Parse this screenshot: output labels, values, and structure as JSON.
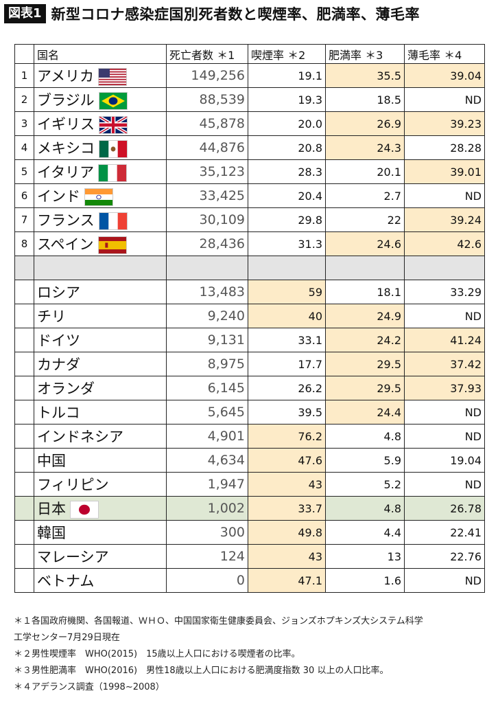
{
  "header": {
    "badge": "図表1",
    "title": "新型コロナ感染症国別死者数と喫煙率、肥満率、薄毛率"
  },
  "columns": [
    "",
    "国名",
    "死亡者数 ＊1",
    "喫煙率 ＊2",
    "肥満率 ＊3",
    "薄毛率 ＊4"
  ],
  "colors": {
    "highlight": "#fdebc8",
    "japan_row": "#dfe8d4",
    "separator": "#e4e4e4"
  },
  "rows": [
    {
      "rank": "1",
      "name": "アメリカ",
      "flag": "us-flag-icon",
      "deaths": "149,256",
      "smoking": "19.1",
      "obesity": "35.5",
      "baldness": "39.04",
      "hl": [
        false,
        true,
        true
      ]
    },
    {
      "rank": "2",
      "name": "ブラジル",
      "flag": "brazil-flag-icon",
      "deaths": "88,539",
      "smoking": "19.3",
      "obesity": "18.5",
      "baldness": "ND",
      "hl": [
        false,
        false,
        false
      ]
    },
    {
      "rank": "3",
      "name": "イギリス",
      "flag": "uk-flag-icon",
      "deaths": "45,878",
      "smoking": "20.0",
      "obesity": "26.9",
      "baldness": "39.23",
      "hl": [
        false,
        true,
        true
      ]
    },
    {
      "rank": "4",
      "name": "メキシコ",
      "flag": "mexico-flag-icon",
      "deaths": "44,876",
      "smoking": "20.8",
      "obesity": "24.3",
      "baldness": "28.28",
      "hl": [
        false,
        true,
        false
      ]
    },
    {
      "rank": "5",
      "name": "イタリア",
      "flag": "italy-flag-icon",
      "deaths": "35,123",
      "smoking": "28.3",
      "obesity": "20.1",
      "baldness": "39.01",
      "hl": [
        false,
        false,
        true
      ]
    },
    {
      "rank": "6",
      "name": "インド",
      "flag": "india-flag-icon",
      "deaths": "33,425",
      "smoking": "20.4",
      "obesity": "2.7",
      "baldness": "ND",
      "hl": [
        false,
        false,
        false
      ]
    },
    {
      "rank": "7",
      "name": "フランス",
      "flag": "france-flag-icon",
      "deaths": "30,109",
      "smoking": "29.8",
      "obesity": "22",
      "baldness": "39.24",
      "hl": [
        false,
        false,
        true
      ]
    },
    {
      "rank": "8",
      "name": "スペイン",
      "flag": "spain-flag-icon",
      "deaths": "28,436",
      "smoking": "31.3",
      "obesity": "24.6",
      "baldness": "42.6",
      "hl": [
        false,
        true,
        true
      ]
    },
    {
      "separator": true
    },
    {
      "rank": "",
      "name": "ロシア",
      "deaths": "13,483",
      "smoking": "59",
      "obesity": "18.1",
      "baldness": "33.29",
      "hl": [
        true,
        false,
        false
      ]
    },
    {
      "rank": "",
      "name": "チリ",
      "deaths": "9,240",
      "smoking": "40",
      "obesity": "24.9",
      "baldness": "ND",
      "hl": [
        true,
        true,
        false
      ]
    },
    {
      "rank": "",
      "name": "ドイツ",
      "deaths": "9,131",
      "smoking": "33.1",
      "obesity": "24.2",
      "baldness": "41.24",
      "hl": [
        false,
        true,
        true
      ]
    },
    {
      "rank": "",
      "name": "カナダ",
      "deaths": "8,975",
      "smoking": "17.7",
      "obesity": "29.5",
      "baldness": "37.42",
      "hl": [
        false,
        true,
        true
      ]
    },
    {
      "rank": "",
      "name": "オランダ",
      "deaths": "6,145",
      "smoking": "26.2",
      "obesity": "29.5",
      "baldness": "37.93",
      "hl": [
        false,
        true,
        true
      ]
    },
    {
      "rank": "",
      "name": "トルコ",
      "deaths": "5,645",
      "smoking": "39.5",
      "obesity": "24.4",
      "baldness": "ND",
      "hl": [
        false,
        true,
        false
      ]
    },
    {
      "rank": "",
      "name": "インドネシア",
      "deaths": "4,901",
      "smoking": "76.2",
      "obesity": "4.8",
      "baldness": "ND",
      "hl": [
        true,
        false,
        false
      ]
    },
    {
      "rank": "",
      "name": "中国",
      "deaths": "4,634",
      "smoking": "47.6",
      "obesity": "5.9",
      "baldness": "19.04",
      "hl": [
        true,
        false,
        false
      ]
    },
    {
      "rank": "",
      "name": "フィリピン",
      "deaths": "1,947",
      "smoking": "43",
      "obesity": "5.2",
      "baldness": "ND",
      "hl": [
        true,
        false,
        false
      ]
    },
    {
      "rank": "",
      "name": "日本",
      "flag": "japan-flag-icon",
      "deaths": "1,002",
      "smoking": "33.7",
      "obesity": "4.8",
      "baldness": "26.78",
      "hl": [
        true,
        false,
        false
      ],
      "japan": true
    },
    {
      "rank": "",
      "name": "韓国",
      "deaths": "300",
      "smoking": "49.8",
      "obesity": "4.4",
      "baldness": "22.41",
      "hl": [
        true,
        false,
        false
      ]
    },
    {
      "rank": "",
      "name": "マレーシア",
      "deaths": "124",
      "smoking": "43",
      "obesity": "13",
      "baldness": "22.76",
      "hl": [
        true,
        false,
        false
      ]
    },
    {
      "rank": "",
      "name": "ベトナム",
      "deaths": "0",
      "smoking": "47.1",
      "obesity": "1.6",
      "baldness": "ND",
      "hl": [
        true,
        false,
        false
      ]
    }
  ],
  "notes": [
    "＊１各国政府機関、各国報道、ＷＨＯ、中国国家衛生健康委員会、ジョンズホプキンズ大システム科学",
    "工学センター7月29日現在",
    "＊２男性喫煙率　WHO(2015)　15歳以上人口における喫煙者の比率。",
    "＊３男性肥満率　WHO(2016)　男性18歳以上人口における肥満度指数 30 以上の人口比率。",
    "＊４アデランス調査（1998~2008）"
  ]
}
